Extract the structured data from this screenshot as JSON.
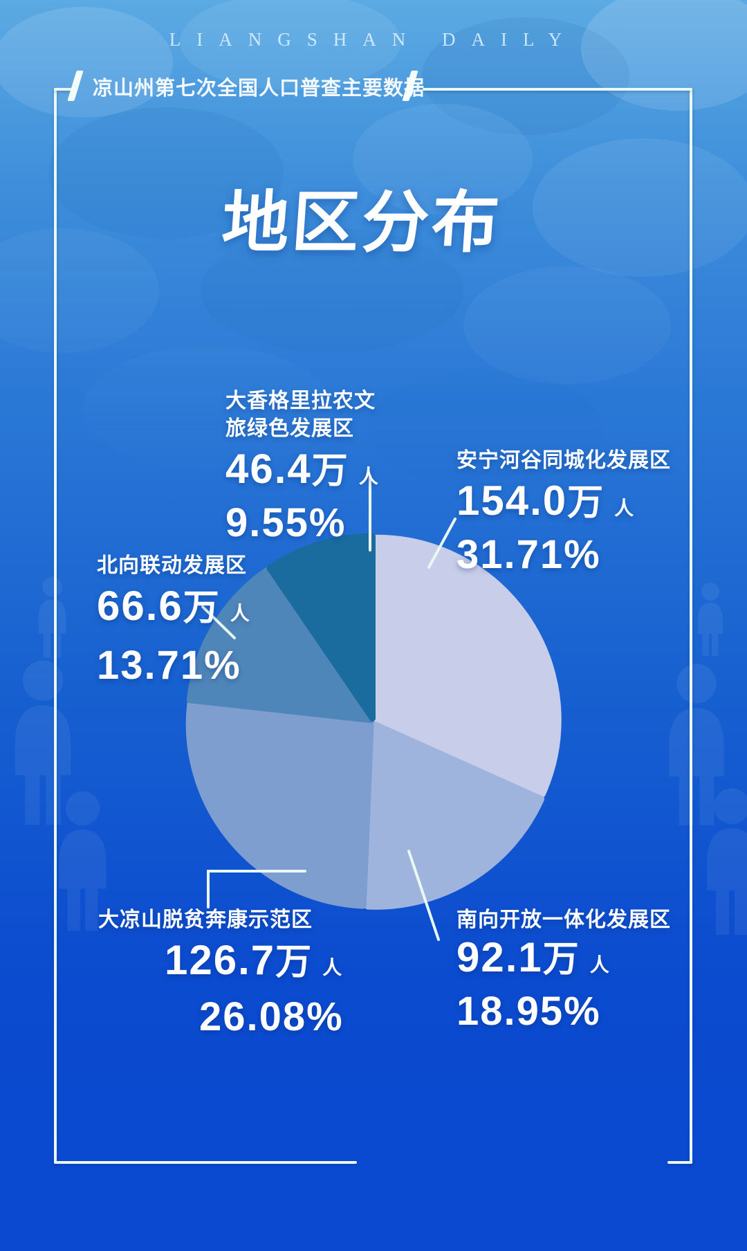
{
  "masthead": "LIANGSHAN DAILY",
  "header_title": "凉山州第七次全国人口普查主要数据",
  "page_title": "地区分布",
  "units": {
    "wan": "万",
    "ren": "人"
  },
  "colors": {
    "background_top": "#5caae3",
    "background_bottom": "#0a49d0",
    "frame": "#e9f8f2",
    "text": "#ffffff"
  },
  "chart_data": {
    "type": "pie",
    "title": "地区分布",
    "unit": "万人",
    "start_angle_deg": 0,
    "direction": "clockwise",
    "legend_position": "callouts",
    "slices": [
      {
        "id": "anning",
        "label": "安宁河谷同城化发展区",
        "value_10k": 154.0,
        "percent": 31.71,
        "color": "#c8cde9"
      },
      {
        "id": "nanxiang",
        "label": "南向开放一体化发展区",
        "value_10k": 92.1,
        "percent": 18.95,
        "color": "#9fb4dd"
      },
      {
        "id": "daliangshan",
        "label": "大凉山脱贫奔康示范区",
        "value_10k": 126.7,
        "percent": 26.08,
        "color": "#7d9ecf"
      },
      {
        "id": "beixiang",
        "label": "北向联动发展区",
        "value_10k": 66.6,
        "percent": 13.71,
        "color": "#4f86ba"
      },
      {
        "id": "daxianggelila",
        "label": "大香格里拉农文旅绿色发展区",
        "value_10k": 46.4,
        "percent": 9.55,
        "color": "#1a6b9e"
      }
    ]
  },
  "callouts": [
    {
      "id": "daxianggelila",
      "line1": "大香格里拉农文",
      "line2": "旅绿色发展区",
      "value": "46.4",
      "percent": "9.55%"
    },
    {
      "id": "anning",
      "line1": "安宁河谷同城化发展区",
      "value": "154.0",
      "percent": "31.71%"
    },
    {
      "id": "beixiang",
      "line1": "北向联动发展区",
      "value": "66.6",
      "percent": "13.71%"
    },
    {
      "id": "daliangshan",
      "line1": "大凉山脱贫奔康示范区",
      "value": "126.7",
      "percent": "26.08%"
    },
    {
      "id": "nanxiang",
      "line1": "南向开放一体化发展区",
      "value": "92.1",
      "percent": "18.95%"
    }
  ]
}
